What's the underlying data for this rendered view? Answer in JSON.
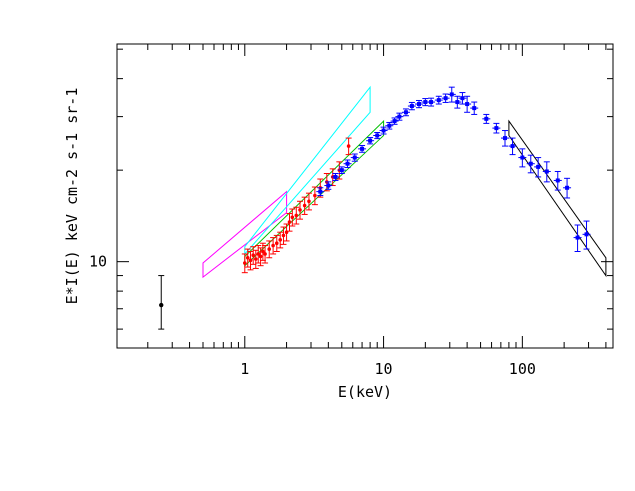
{
  "chart_data": {
    "type": "scatter",
    "title": "",
    "xlabel": "E(keV)",
    "ylabel": "E*I(E) keV cm-2 s-1 sr-1",
    "xscale": "log",
    "yscale": "log",
    "xlim": [
      0.12,
      450
    ],
    "ylim": [
      5.2,
      52
    ],
    "x_tick_labels": [
      {
        "value": 1,
        "label": "1"
      },
      {
        "value": 10,
        "label": "10"
      },
      {
        "value": 100,
        "label": "100"
      }
    ],
    "y_tick_labels": [
      {
        "value": 10,
        "label": "10"
      }
    ],
    "grid": false,
    "legend": "none",
    "reference_point": {
      "x": 0.25,
      "y": 7.2,
      "ylo": 6.0,
      "yhi": 9.0,
      "color": "#000000"
    },
    "series": [
      {
        "color": "#ff0000",
        "marker": "point-errorbar",
        "points": [
          [
            1.0,
            9.9,
            9.2,
            10.6
          ],
          [
            1.05,
            10.3,
            9.6,
            11.0
          ],
          [
            1.1,
            10.1,
            9.4,
            10.8
          ],
          [
            1.15,
            10.5,
            9.8,
            11.2
          ],
          [
            1.2,
            10.2,
            9.5,
            10.9
          ],
          [
            1.25,
            10.6,
            9.9,
            11.3
          ],
          [
            1.3,
            10.4,
            9.7,
            11.1
          ],
          [
            1.35,
            10.8,
            10.1,
            11.5
          ],
          [
            1.4,
            10.6,
            9.9,
            11.3
          ],
          [
            1.5,
            11.0,
            10.3,
            11.7
          ],
          [
            1.6,
            11.3,
            10.6,
            12.0
          ],
          [
            1.7,
            11.5,
            10.8,
            12.2
          ],
          [
            1.8,
            11.8,
            11.1,
            12.5
          ],
          [
            1.9,
            12.2,
            11.4,
            13.0
          ],
          [
            2.0,
            12.5,
            11.7,
            13.3
          ],
          [
            2.1,
            13.5,
            12.6,
            14.4
          ],
          [
            2.2,
            14.0,
            13.1,
            14.9
          ],
          [
            2.35,
            14.2,
            13.3,
            15.1
          ],
          [
            2.5,
            14.8,
            13.8,
            15.8
          ],
          [
            2.7,
            15.3,
            14.3,
            16.3
          ],
          [
            2.9,
            15.8,
            14.8,
            16.8
          ],
          [
            3.2,
            16.5,
            15.4,
            17.6
          ],
          [
            3.5,
            17.5,
            16.3,
            18.7
          ],
          [
            3.9,
            18.3,
            17.1,
            19.5
          ],
          [
            4.3,
            19.0,
            17.8,
            20.2
          ],
          [
            4.8,
            20.0,
            18.7,
            21.3
          ],
          [
            5.6,
            24.0,
            22.5,
            25.5
          ]
        ]
      },
      {
        "color": "#0000ff",
        "marker": "square-errorbar",
        "points": [
          [
            3.5,
            17.0,
            16.5,
            17.5
          ],
          [
            4.0,
            17.8,
            17.3,
            18.3
          ],
          [
            4.5,
            19.0,
            18.5,
            19.5
          ],
          [
            5.0,
            20.0,
            19.5,
            20.5
          ],
          [
            5.5,
            21.0,
            20.4,
            21.6
          ],
          [
            6.2,
            22.0,
            21.4,
            22.6
          ],
          [
            7.0,
            23.5,
            22.9,
            24.1
          ],
          [
            8.0,
            25.0,
            24.4,
            25.6
          ],
          [
            9.0,
            26.0,
            25.4,
            26.6
          ],
          [
            10.0,
            27.0,
            26.3,
            27.7
          ],
          [
            11.0,
            28.0,
            27.3,
            28.7
          ],
          [
            12.0,
            29.0,
            28.3,
            29.7
          ],
          [
            13.0,
            30.0,
            29.2,
            30.8
          ],
          [
            14.5,
            31.0,
            30.2,
            31.8
          ],
          [
            16.0,
            32.5,
            31.6,
            33.4
          ],
          [
            18.0,
            33.0,
            32.1,
            33.9
          ],
          [
            20.0,
            33.5,
            32.6,
            34.4
          ],
          [
            22.0,
            33.5,
            32.5,
            34.5
          ],
          [
            25.0,
            34.0,
            33.0,
            35.0
          ],
          [
            28.0,
            34.5,
            33.4,
            35.6
          ],
          [
            31.0,
            35.5,
            33.5,
            37.5
          ],
          [
            34.0,
            33.5,
            32.0,
            35.0
          ],
          [
            37.0,
            34.5,
            33.0,
            36.0
          ],
          [
            40.0,
            33.0,
            31.0,
            35.0
          ],
          [
            45.0,
            32.0,
            30.5,
            33.5
          ],
          [
            55.0,
            29.5,
            28.5,
            30.5
          ],
          [
            65.0,
            27.5,
            26.5,
            28.5
          ],
          [
            75.0,
            25.5,
            24.0,
            27.0
          ],
          [
            85.0,
            24.0,
            22.5,
            25.5
          ],
          [
            100.0,
            22.0,
            20.5,
            23.5
          ],
          [
            115.0,
            21.0,
            19.6,
            22.4
          ],
          [
            130.0,
            20.5,
            19.0,
            22.0
          ],
          [
            150.0,
            19.8,
            18.3,
            21.3
          ],
          [
            180.0,
            18.5,
            17.2,
            19.8
          ],
          [
            210.0,
            17.5,
            16.2,
            18.8
          ],
          [
            250.0,
            12.0,
            10.8,
            13.2
          ],
          [
            290.0,
            12.3,
            11.0,
            13.6
          ]
        ]
      }
    ],
    "bowties": [
      {
        "color": "#ff00ff",
        "polygon": [
          [
            0.5,
            8.9
          ],
          [
            0.5,
            9.9
          ],
          [
            2.0,
            17.0
          ],
          [
            2.0,
            14.5
          ]
        ]
      },
      {
        "color": "#00ffff",
        "polygon": [
          [
            1.0,
            10.6
          ],
          [
            1.0,
            11.2
          ],
          [
            8.0,
            37.5
          ],
          [
            8.0,
            31.0
          ]
        ]
      },
      {
        "color": "#00c000",
        "polygon": [
          [
            1.0,
            9.7
          ],
          [
            1.0,
            10.4
          ],
          [
            10.0,
            29.0
          ],
          [
            10.0,
            26.0
          ]
        ]
      },
      {
        "color": "#000000",
        "polygon": [
          [
            80.0,
            29.0
          ],
          [
            400.0,
            10.3
          ],
          [
            400.0,
            9.0
          ],
          [
            80.0,
            26.0
          ]
        ]
      }
    ]
  }
}
